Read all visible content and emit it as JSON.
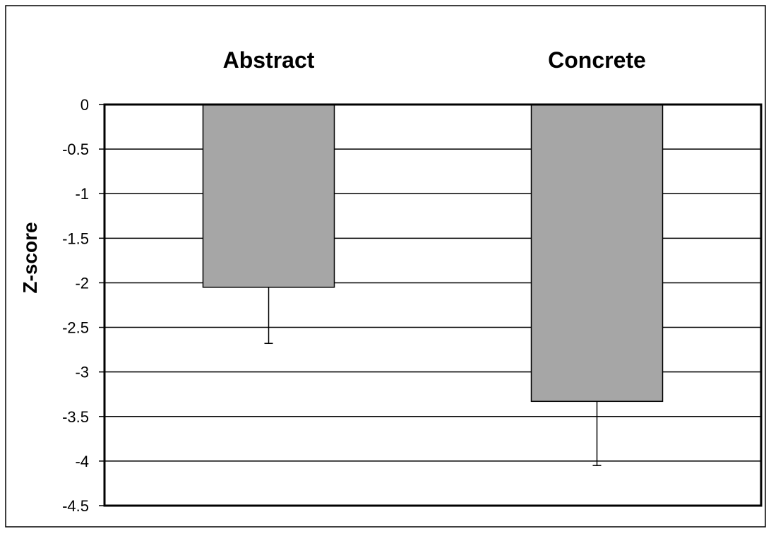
{
  "chart_data": {
    "type": "bar",
    "categories": [
      "Abstract",
      "Concrete"
    ],
    "values": [
      -2.05,
      -3.33
    ],
    "errors": [
      0.63,
      0.72
    ],
    "title": "",
    "xlabel": "",
    "ylabel": "Z-score",
    "ylim": [
      -4.5,
      0
    ],
    "yticks": [
      0,
      -0.5,
      -1,
      -1.5,
      -2,
      -2.5,
      -3,
      -3.5,
      -4,
      -4.5
    ],
    "ytick_labels": [
      "0",
      "-0.5",
      "-1",
      "-1.5",
      "-2",
      "-2.5",
      "-3",
      "-3.5",
      "-4",
      "-4.5"
    ],
    "category_labels_position": "top",
    "grid": true,
    "legend": false,
    "colors": {
      "bar_fill": "#a6a6a6",
      "bar_stroke": "#000000",
      "grid": "#000000",
      "background": "#ffffff"
    }
  }
}
